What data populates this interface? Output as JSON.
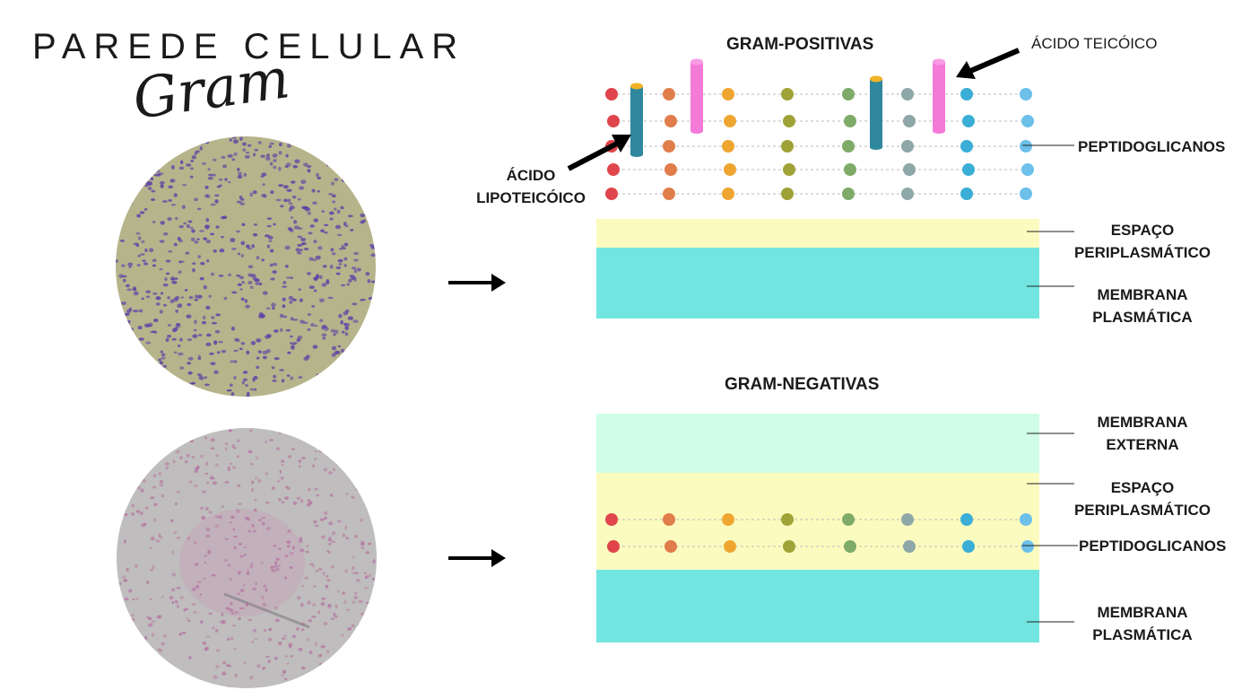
{
  "header": {
    "title": "PAREDE CELULAR",
    "subtitle": "Gram"
  },
  "positive": {
    "title": "GRAM-POSITIVAS",
    "labels": {
      "teichoic": "ÁCIDO TEICÓICO",
      "lipo_1": "ÁCIDO",
      "lipo_2": "LIPOTEICÓICO",
      "peptido": "PEPTIDOGLICANOS",
      "peri_1": "ESPAÇO",
      "peri_2": "PERIPLASMÁTICO",
      "membrane_1": "MEMBRANA",
      "membrane_2": "PLASMÁTICA"
    }
  },
  "negative": {
    "title": "GRAM-NEGATIVAS",
    "labels": {
      "outer_1": "MEMBRANA",
      "outer_2": "EXTERNA",
      "peri_1": "ESPAÇO",
      "peri_2": "PERIPLASMÁTICO",
      "peptido": "PEPTIDOGLICANOS",
      "membrane_1": "MEMBRANA",
      "membrane_2": "PLASMÁTICA"
    }
  },
  "colors": {
    "dots": [
      "#e0454b",
      "#e07d4a",
      "#eea631",
      "#9fa236",
      "#7fab68",
      "#8ea7a8",
      "#3aaed6",
      "#6cc0ea"
    ],
    "peptido_line": "#bbbbbb",
    "periplasm": "#fcfbbf",
    "plasma_membrane": "#72e5e0",
    "outer_membrane": "#d0fde5",
    "lipoteichoic": "#2f889d",
    "teichoic": "#f47ad8",
    "cap": "#f1b226",
    "positive_stain": "#5a3fa8",
    "negative_stain": "#b3649b"
  },
  "icons": {
    "arrow": "arrow-right-icon",
    "pointer": "pointer-arrow-icon",
    "micrograph": "micrograph-image"
  }
}
